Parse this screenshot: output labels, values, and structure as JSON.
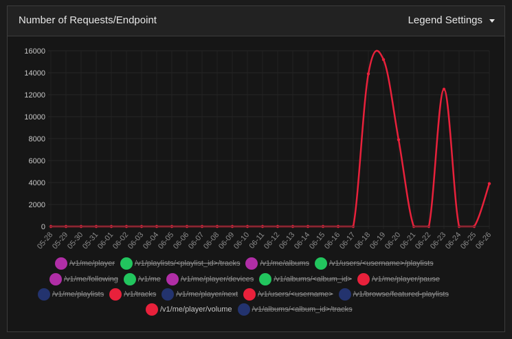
{
  "header": {
    "title": "Number of Requests/Endpoint",
    "legend_settings_label": "Legend Settings"
  },
  "chart_data": {
    "type": "line",
    "title": "Number of Requests/Endpoint",
    "categories": [
      "05-28",
      "05-29",
      "05-30",
      "05-31",
      "06-01",
      "06-02",
      "06-03",
      "06-04",
      "06-05",
      "06-06",
      "06-07",
      "06-08",
      "06-09",
      "06-10",
      "06-11",
      "06-12",
      "06-13",
      "06-14",
      "06-15",
      "06-16",
      "06-17",
      "06-18",
      "06-19",
      "06-20",
      "06-21",
      "06-22",
      "06-23",
      "06-24",
      "06-25",
      "06-26"
    ],
    "ylim": [
      0,
      16000
    ],
    "yticks": [
      0,
      2000,
      4000,
      6000,
      8000,
      10000,
      12000,
      14000,
      16000
    ],
    "grid": true,
    "legend_placement": "bottom",
    "series": [
      {
        "name": "/v1/me/player/volume",
        "color": "#e8213b",
        "values": [
          0,
          0,
          0,
          0,
          0,
          0,
          0,
          0,
          0,
          0,
          0,
          0,
          0,
          0,
          0,
          0,
          0,
          0,
          0,
          0,
          0,
          13900,
          15200,
          7900,
          0,
          0,
          12500,
          0,
          0,
          3900
        ]
      }
    ],
    "legend": [
      {
        "label": "/v1/me/player",
        "color": "#b02ea6",
        "hidden": true
      },
      {
        "label": "/v1/playlists/<playlist_id>/tracks",
        "color": "#22c55e",
        "hidden": true
      },
      {
        "label": "/v1/me/albums",
        "color": "#b02ea6",
        "hidden": true
      },
      {
        "label": "/v1/users/<username>/playlists",
        "color": "#22c55e",
        "hidden": true
      },
      {
        "label": "/v1/me/following",
        "color": "#b02ea6",
        "hidden": true
      },
      {
        "label": "/v1/me",
        "color": "#22c55e",
        "hidden": true
      },
      {
        "label": "/v1/me/player/devices",
        "color": "#b02ea6",
        "hidden": true
      },
      {
        "label": "/v1/albums/<album_id>",
        "color": "#22c55e",
        "hidden": true
      },
      {
        "label": "/v1/me/player/pause",
        "color": "#e8213b",
        "hidden": true
      },
      {
        "label": "/v1/me/playlists",
        "color": "#23336e",
        "hidden": true
      },
      {
        "label": "/v1/tracks",
        "color": "#e8213b",
        "hidden": true
      },
      {
        "label": "/v1/me/player/next",
        "color": "#23336e",
        "hidden": true
      },
      {
        "label": "/v1/users/<username>",
        "color": "#e8213b",
        "hidden": true
      },
      {
        "label": "/v1/browse/featured-playlists",
        "color": "#23336e",
        "hidden": true
      },
      {
        "label": "/v1/me/player/volume",
        "color": "#e8213b",
        "hidden": false
      },
      {
        "label": "/v1/albums/<album_id>/tracks",
        "color": "#23336e",
        "hidden": true
      }
    ]
  }
}
